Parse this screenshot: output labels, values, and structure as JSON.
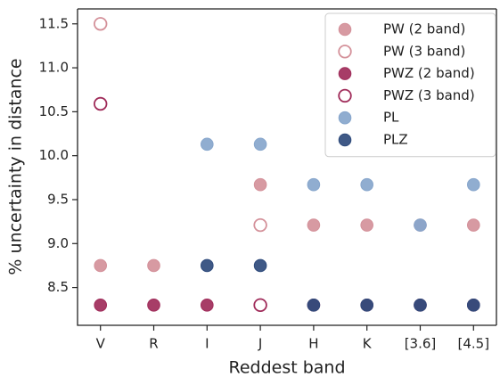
{
  "chart_data": {
    "type": "scatter",
    "x_label": "Reddest band",
    "y_label": "% uncertainty in distance",
    "categories": [
      "V",
      "R",
      "I",
      "J",
      "H",
      "K",
      "[3.6]",
      "[4.5]"
    ],
    "ylim": [
      8.07,
      11.67
    ],
    "yticks": [
      {
        "value": 8.5,
        "label": "8.5"
      },
      {
        "value": 9,
        "label": "9.0"
      },
      {
        "value": 9.5,
        "label": "9.5"
      },
      {
        "value": 10,
        "label": "10.0"
      },
      {
        "value": 10.5,
        "label": "10.5"
      },
      {
        "value": 11,
        "label": "11.0"
      },
      {
        "value": 11.5,
        "label": "11.5"
      }
    ],
    "legend": "upper right",
    "series": [
      {
        "name": "PW (2 band)",
        "color": "#d4919a",
        "marker": "filled",
        "values": [
          8.75,
          8.75,
          null,
          9.67,
          9.21,
          9.21,
          9.21,
          9.21
        ]
      },
      {
        "name": "PW (3 band)",
        "color": "#d4919a",
        "marker": "open",
        "values": [
          11.5,
          null,
          null,
          9.21,
          null,
          null,
          null,
          null
        ]
      },
      {
        "name": "PWZ (2 band)",
        "color": "#a02c5a",
        "marker": "filled",
        "values": [
          8.3,
          8.3,
          8.3,
          null,
          8.3,
          8.3,
          8.3,
          8.3
        ]
      },
      {
        "name": "PWZ (3 band)",
        "color": "#a02c5a",
        "marker": "open",
        "values": [
          10.59,
          null,
          null,
          8.3,
          null,
          null,
          null,
          null
        ]
      },
      {
        "name": "PL",
        "color": "#87a6cc",
        "marker": "filled",
        "values": [
          null,
          null,
          10.13,
          10.13,
          9.67,
          9.67,
          9.21,
          9.67
        ]
      },
      {
        "name": "PLZ",
        "color": "#2f4b7c",
        "marker": "filled",
        "values": [
          null,
          null,
          8.75,
          8.75,
          8.3,
          8.3,
          8.3,
          8.3
        ]
      }
    ]
  }
}
